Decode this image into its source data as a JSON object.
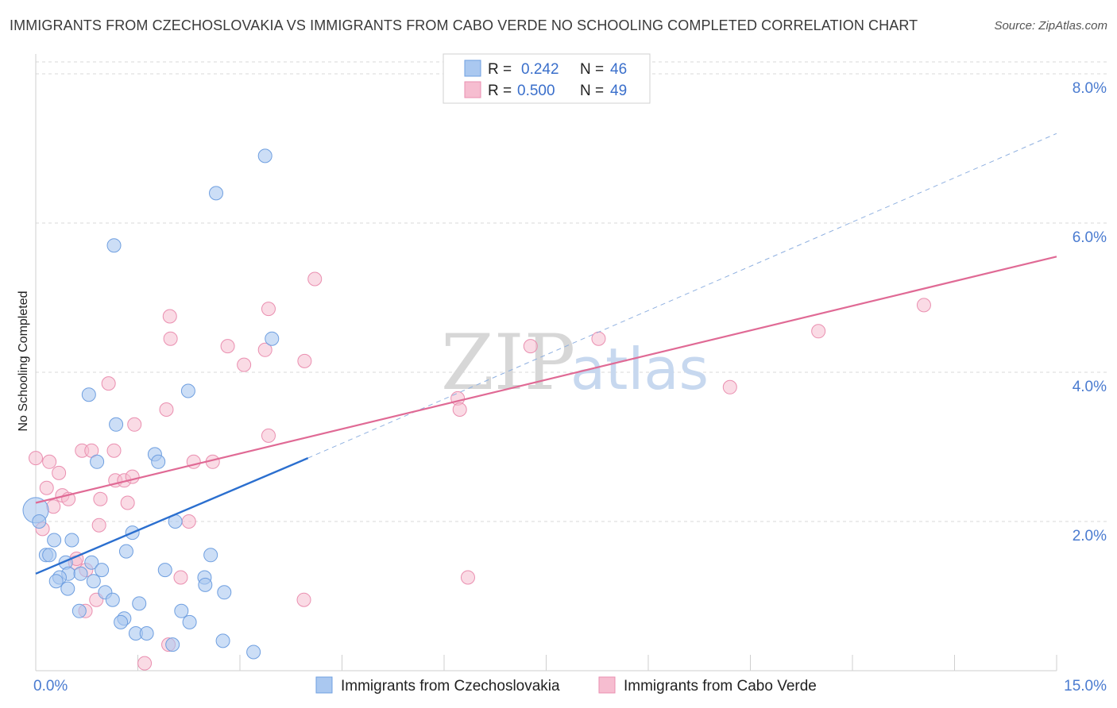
{
  "title": "IMMIGRANTS FROM CZECHOSLOVAKIA VS IMMIGRANTS FROM CABO VERDE NO SCHOOLING COMPLETED CORRELATION CHART",
  "source": "Source: ZipAtlas.com",
  "watermark": {
    "zip": "ZIP",
    "atlas": "atlas"
  },
  "colors": {
    "blue_fill": "#aac8f0",
    "blue_stroke": "#6f9fe0",
    "blue_line": "#2b6fcf",
    "pink_fill": "#f6bdd0",
    "pink_stroke": "#ea8fb0",
    "pink_line": "#e06a95",
    "tick_text": "#4a7bd0",
    "grid": "#d9d9d9"
  },
  "legend": {
    "rows": [
      {
        "r_label": "R =",
        "r_value": "0.242",
        "n_label": "N =",
        "n_value": "46"
      },
      {
        "r_label": "R =",
        "r_value": "0.500",
        "n_label": "N =",
        "n_value": "49"
      }
    ]
  },
  "chart_data": {
    "type": "scatter",
    "xlabel": "",
    "ylabel": "No Schooling Completed",
    "xlim": [
      0,
      15
    ],
    "ylim": [
      0,
      8
    ],
    "x_tick_labels": [
      "0.0%",
      "15.0%"
    ],
    "y_ticks": [
      2,
      4,
      6,
      8
    ],
    "y_tick_labels": [
      "2.0%",
      "4.0%",
      "6.0%",
      "8.0%"
    ],
    "grid": "horizontal dashed",
    "legend_placement": "top-center",
    "series": [
      {
        "name": "Immigrants from Czechoslovakia",
        "color": "#aac8f0",
        "R": 0.242,
        "N": 46,
        "trend": {
          "x": [
            0,
            4.0
          ],
          "y": [
            1.3,
            2.85
          ]
        },
        "trend_extension": {
          "x": [
            4.0,
            15.0
          ],
          "y": [
            2.85,
            7.2
          ]
        },
        "points": [
          [
            3.37,
            6.9
          ],
          [
            2.65,
            6.4
          ],
          [
            1.15,
            5.7
          ],
          [
            3.47,
            4.45
          ],
          [
            0.78,
            3.7
          ],
          [
            2.24,
            3.75
          ],
          [
            1.18,
            3.3
          ],
          [
            1.75,
            2.9
          ],
          [
            0.9,
            2.8
          ],
          [
            1.8,
            2.8
          ],
          [
            0.0,
            2.15
          ],
          [
            0.05,
            2.0
          ],
          [
            2.05,
            2.0
          ],
          [
            1.42,
            1.85
          ],
          [
            0.27,
            1.75
          ],
          [
            0.53,
            1.75
          ],
          [
            1.33,
            1.6
          ],
          [
            0.15,
            1.55
          ],
          [
            0.2,
            1.55
          ],
          [
            2.57,
            1.55
          ],
          [
            0.44,
            1.45
          ],
          [
            0.82,
            1.45
          ],
          [
            0.48,
            1.3
          ],
          [
            0.66,
            1.3
          ],
          [
            0.97,
            1.35
          ],
          [
            1.9,
            1.35
          ],
          [
            0.35,
            1.25
          ],
          [
            0.3,
            1.2
          ],
          [
            2.48,
            1.25
          ],
          [
            0.85,
            1.2
          ],
          [
            2.49,
            1.15
          ],
          [
            0.47,
            1.1
          ],
          [
            1.02,
            1.05
          ],
          [
            2.77,
            1.05
          ],
          [
            1.13,
            0.95
          ],
          [
            1.52,
            0.9
          ],
          [
            0.64,
            0.8
          ],
          [
            2.14,
            0.8
          ],
          [
            1.3,
            0.7
          ],
          [
            1.25,
            0.65
          ],
          [
            2.26,
            0.65
          ],
          [
            1.47,
            0.5
          ],
          [
            1.63,
            0.5
          ],
          [
            2.01,
            0.35
          ],
          [
            2.75,
            0.4
          ],
          [
            3.2,
            0.25
          ]
        ]
      },
      {
        "name": "Immigrants from Cabo Verde",
        "color": "#f6bdd0",
        "R": 0.5,
        "N": 49,
        "trend": {
          "x": [
            0,
            15.0
          ],
          "y": [
            2.25,
            5.55
          ]
        },
        "points": [
          [
            4.1,
            5.25
          ],
          [
            3.42,
            4.85
          ],
          [
            1.97,
            4.75
          ],
          [
            1.98,
            4.45
          ],
          [
            2.82,
            4.35
          ],
          [
            3.37,
            4.3
          ],
          [
            7.27,
            4.35
          ],
          [
            8.27,
            4.45
          ],
          [
            11.5,
            4.55
          ],
          [
            13.05,
            4.9
          ],
          [
            3.06,
            4.1
          ],
          [
            3.95,
            4.15
          ],
          [
            1.07,
            3.85
          ],
          [
            10.2,
            3.8
          ],
          [
            6.2,
            3.65
          ],
          [
            6.23,
            3.5
          ],
          [
            1.92,
            3.5
          ],
          [
            1.45,
            3.3
          ],
          [
            3.42,
            3.15
          ],
          [
            0.68,
            2.95
          ],
          [
            0.82,
            2.95
          ],
          [
            1.15,
            2.95
          ],
          [
            0.0,
            2.85
          ],
          [
            0.2,
            2.8
          ],
          [
            2.32,
            2.8
          ],
          [
            2.6,
            2.8
          ],
          [
            0.34,
            2.65
          ],
          [
            1.17,
            2.55
          ],
          [
            1.3,
            2.55
          ],
          [
            1.42,
            2.6
          ],
          [
            0.16,
            2.45
          ],
          [
            0.39,
            2.35
          ],
          [
            0.48,
            2.3
          ],
          [
            0.95,
            2.3
          ],
          [
            1.35,
            2.25
          ],
          [
            0.26,
            2.2
          ],
          [
            2.25,
            2.0
          ],
          [
            0.93,
            1.95
          ],
          [
            0.1,
            1.9
          ],
          [
            0.58,
            1.45
          ],
          [
            0.6,
            1.5
          ],
          [
            0.74,
            1.35
          ],
          [
            2.13,
            1.25
          ],
          [
            6.35,
            1.25
          ],
          [
            0.89,
            0.95
          ],
          [
            3.94,
            0.95
          ],
          [
            0.73,
            0.8
          ],
          [
            1.95,
            0.35
          ],
          [
            1.6,
            0.1
          ]
        ]
      }
    ]
  }
}
